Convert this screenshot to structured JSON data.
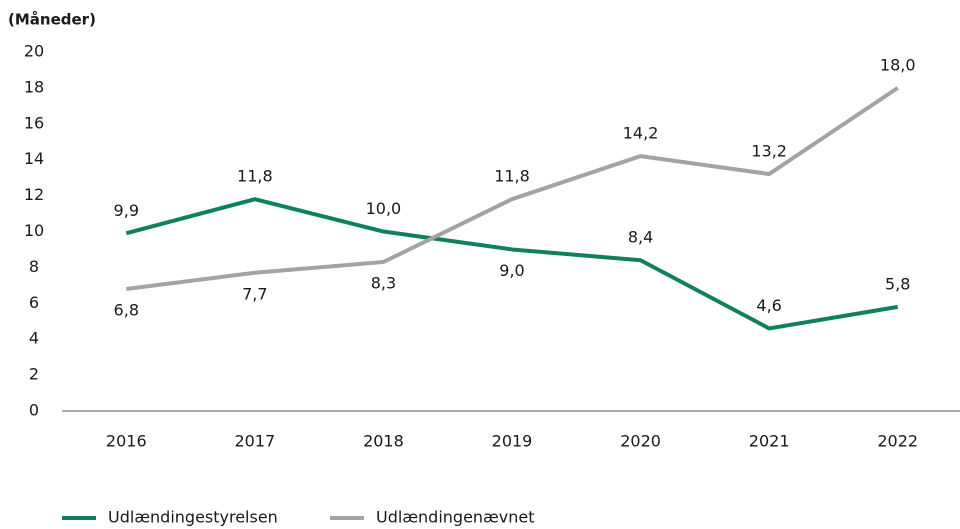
{
  "chart_data": {
    "type": "line",
    "y_label": "(Måneder)",
    "categories": [
      "2016",
      "2017",
      "2018",
      "2019",
      "2020",
      "2021",
      "2022"
    ],
    "series": [
      {
        "name": "Udlændingestyrelsen",
        "color": "#0f7f5e",
        "values": [
          9.9,
          11.8,
          10.0,
          9.0,
          8.4,
          4.6,
          5.8
        ],
        "value_labels": [
          "9,9",
          "11,8",
          "10,0",
          "9,0",
          "8,4",
          "4,6",
          "5,8"
        ]
      },
      {
        "name": "Udlændingenævnet",
        "color": "#a3a3a3",
        "values": [
          6.8,
          7.7,
          8.3,
          11.8,
          14.2,
          13.2,
          18.0
        ],
        "value_labels": [
          "6,8",
          "7,7",
          "8,3",
          "11,8",
          "14,2",
          "13,2",
          "18,0"
        ]
      }
    ],
    "ylim": [
      0,
      20
    ],
    "yticks": [
      0,
      2,
      4,
      6,
      8,
      10,
      12,
      14,
      16,
      18,
      20
    ],
    "grid": false,
    "legend": "bottom"
  }
}
